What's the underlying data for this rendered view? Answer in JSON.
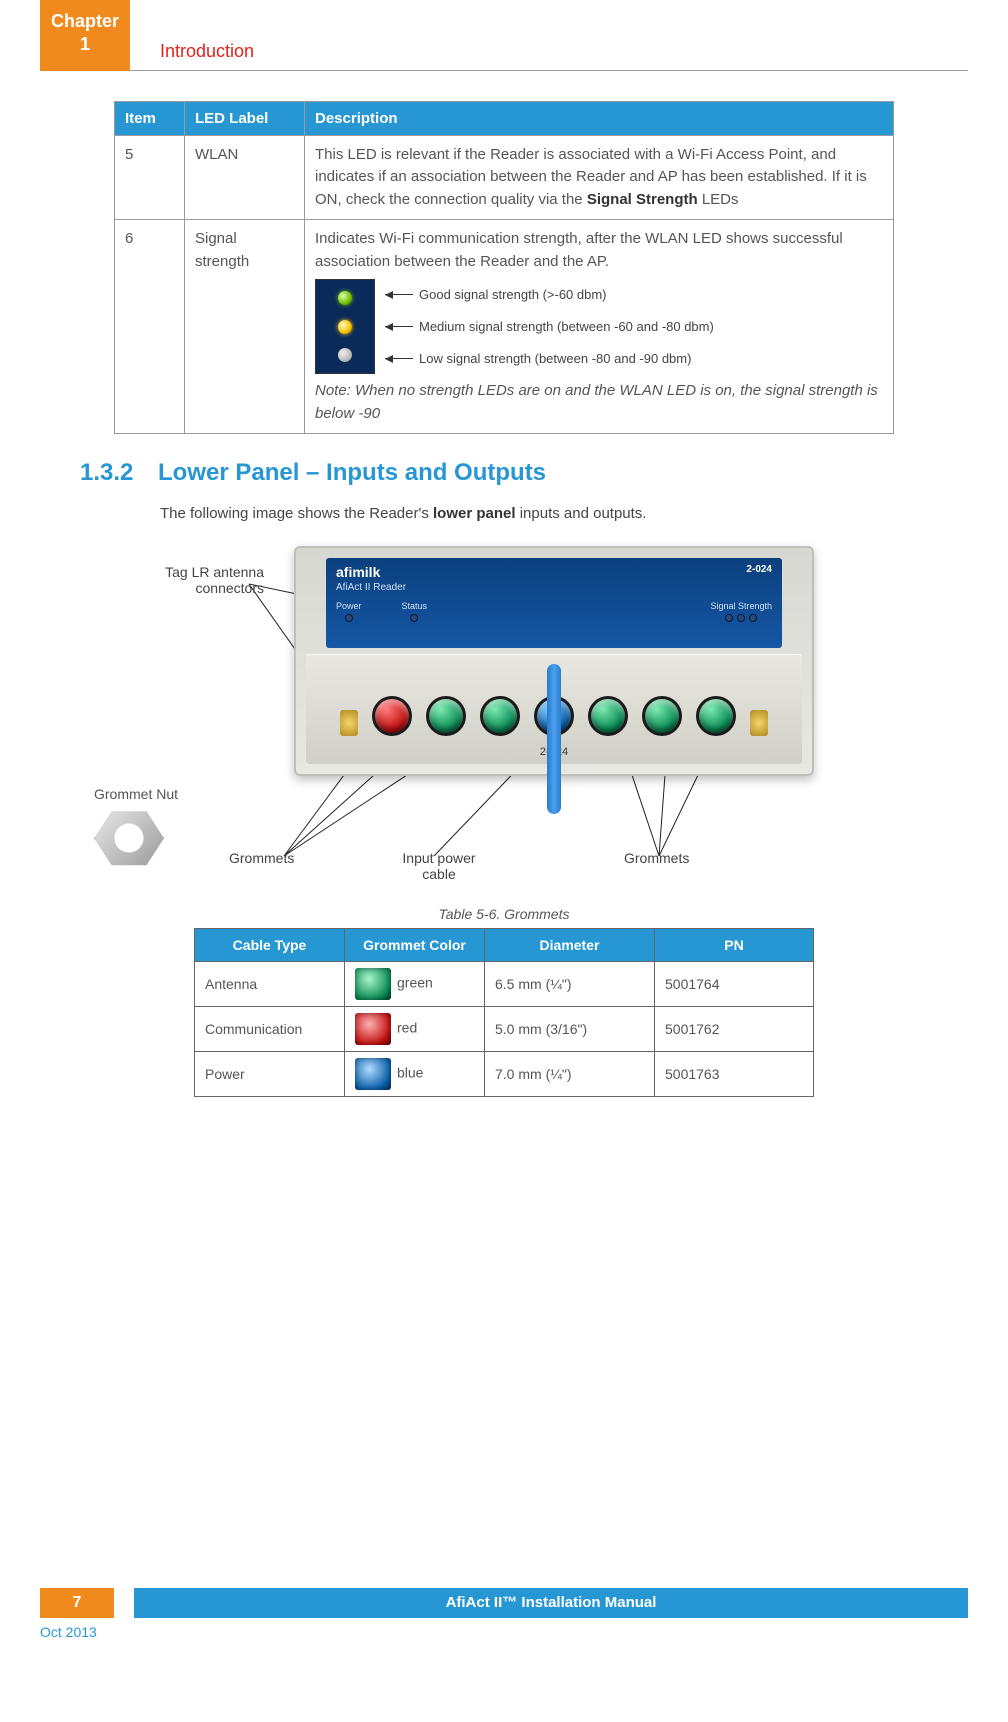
{
  "header": {
    "chapter_word": "Chapter",
    "chapter_num": "1",
    "section_label": "Introduction"
  },
  "led_table": {
    "headers": {
      "item": "Item",
      "label": "LED Label",
      "desc": "Description"
    },
    "rows": [
      {
        "item": "5",
        "label": "WLAN",
        "desc_pre": "This LED is relevant if the Reader is associated with a Wi-Fi Access Point, and indicates if an association between the Reader and AP has been established. If it is ON, check the connection quality via the ",
        "desc_bold": "Signal Strength",
        "desc_post": " LEDs"
      },
      {
        "item": "6",
        "label": "Signal strength",
        "desc_intro": "Indicates Wi-Fi communication strength, after the WLAN LED shows successful association between the Reader and the AP.",
        "sig": {
          "good": "Good signal strength (>-60 dbm)",
          "med": "Medium signal strength (between -60 and -80 dbm)",
          "low": "Low signal strength (between -80 and -90 dbm)"
        },
        "note": "Note: When no strength LEDs are on and the WLAN LED is on, the signal strength is below -90"
      }
    ]
  },
  "section": {
    "num": "1.3.2",
    "title": "Lower Panel – Inputs and Outputs",
    "intro_pre": "The following image shows the Reader's ",
    "intro_bold": "lower panel",
    "intro_post": " inputs and outputs."
  },
  "diagram": {
    "tag_lr": "Tag LR antenna connectors",
    "grommet_nut": "Grommet Nut",
    "grommets_l": "Grommets",
    "input_power": "Input power cable",
    "grommets_r": "Grommets",
    "device_brand": "afimilk",
    "device_model": "AfiAct II Reader",
    "device_id_top": "2-024",
    "device_id_front": "2-024",
    "top_labels": {
      "power": "Power",
      "status": "Status",
      "sig": "Signal Strength"
    }
  },
  "grom_table": {
    "caption": "Table 5-6. Grommets",
    "headers": {
      "type": "Cable Type",
      "color": "Grommet Color",
      "dia": "Diameter",
      "pn": "PN"
    },
    "rows": [
      {
        "type": "Antenna",
        "color_label": "green",
        "swatch": "sw-green",
        "dia": "6.5 mm (¼\")",
        "pn": "5001764"
      },
      {
        "type": "Communication",
        "color_label": "red",
        "swatch": "sw-red",
        "dia": "5.0 mm (3/16\")",
        "pn": "5001762"
      },
      {
        "type": "Power",
        "color_label": "blue",
        "swatch": "sw-blue",
        "dia": "7.0 mm (¼\")",
        "pn": "5001763"
      }
    ]
  },
  "footer": {
    "page": "7",
    "manual": "AfiAct II™ Installation Manual",
    "date": "Oct 2013"
  },
  "colors": {
    "orange": "#f08a1d",
    "blue": "#2797d4",
    "red": "#e2231a"
  }
}
